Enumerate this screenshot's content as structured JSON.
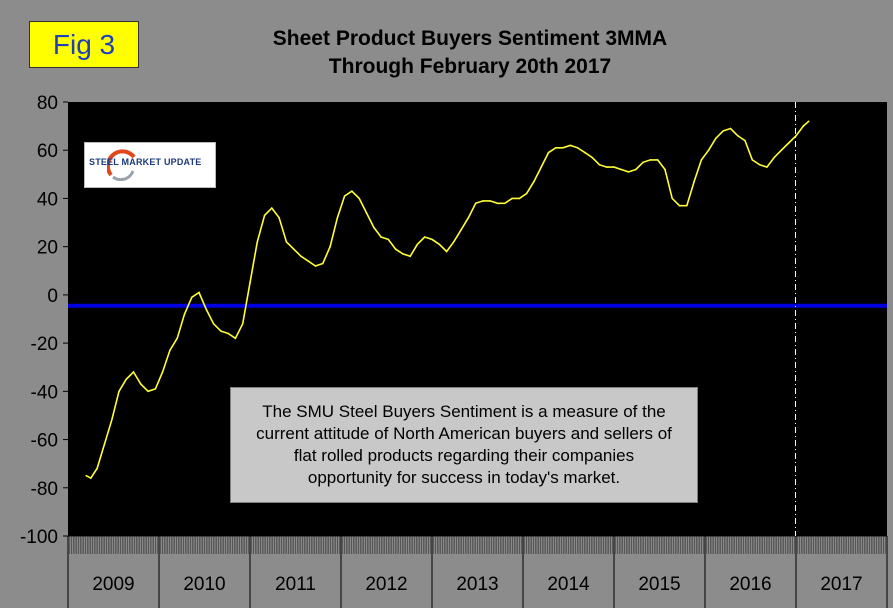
{
  "figure": {
    "label": "Fig 3",
    "title_line1": "Sheet Product Buyers Sentiment 3MMA",
    "title_line2": "Through February 20th 2017"
  },
  "logo": {
    "text": "STEEL MARKET UPDATE"
  },
  "note": {
    "lines": [
      "The SMU Steel Buyers Sentiment is a measure of the",
      "current attitude of North American buyers and sellers of",
      "flat rolled products regarding their companies",
      "opportunity for success in today's market."
    ]
  },
  "colors": {
    "plot_background": "#000000",
    "line": "#ffff33",
    "reference_line": "#0000e0",
    "marker_line": "#ffffff",
    "page_background": "#8c8c8c"
  },
  "chart_data": {
    "type": "line",
    "title": "Sheet Product Buyers Sentiment 3MMA Through February 20th 2017",
    "ylim": [
      -100,
      80
    ],
    "yticks": [
      80,
      60,
      40,
      20,
      0,
      -20,
      -40,
      -60,
      -80,
      -100
    ],
    "xlim": [
      2009.0,
      2018.0
    ],
    "x_tick_labels": [
      "2009",
      "2010",
      "2011",
      "2012",
      "2013",
      "2014",
      "2015",
      "2016",
      "2017"
    ],
    "grid": false,
    "reference_line_y": -4.5,
    "vertical_marker_x": 2017.0,
    "series": [
      {
        "x": [
          2009.2,
          2009.25,
          2009.32,
          2009.4,
          2009.48,
          2009.56,
          2009.64,
          2009.72,
          2009.8,
          2009.88,
          2009.96,
          2010.04,
          2010.12,
          2010.2,
          2010.28,
          2010.36,
          2010.44,
          2010.52,
          2010.6,
          2010.68,
          2010.76,
          2010.84,
          2010.92,
          2011.0,
          2011.08,
          2011.16,
          2011.24,
          2011.32,
          2011.4,
          2011.48,
          2011.56,
          2011.64,
          2011.72,
          2011.8,
          2011.88,
          2011.96,
          2012.04,
          2012.12,
          2012.2,
          2012.28,
          2012.36,
          2012.44,
          2012.52,
          2012.6,
          2012.68,
          2012.76,
          2012.84,
          2012.92,
          2013.0,
          2013.08,
          2013.16,
          2013.24,
          2013.32,
          2013.4,
          2013.48,
          2013.56,
          2013.64,
          2013.72,
          2013.8,
          2013.88,
          2013.96,
          2014.04,
          2014.12,
          2014.2,
          2014.28,
          2014.36,
          2014.44,
          2014.52,
          2014.6,
          2014.68,
          2014.76,
          2014.84,
          2014.92,
          2015.0,
          2015.08,
          2015.16,
          2015.24,
          2015.32,
          2015.4,
          2015.48,
          2015.56,
          2015.64,
          2015.72,
          2015.8,
          2015.88,
          2015.96,
          2016.04,
          2016.12,
          2016.2,
          2016.28,
          2016.36,
          2016.44,
          2016.52,
          2016.6,
          2016.68,
          2016.76,
          2016.84,
          2016.92,
          2017.0,
          2017.08,
          2017.14
        ],
        "y": [
          -75,
          -76,
          -72,
          -62,
          -52,
          -40,
          -35,
          -32,
          -37,
          -40,
          -39,
          -32,
          -23,
          -18,
          -8,
          -1,
          1,
          -6,
          -12,
          -15,
          -16,
          -18,
          -12,
          5,
          22,
          33,
          36,
          32,
          22,
          19,
          16,
          14,
          12,
          13,
          20,
          32,
          41,
          43,
          40,
          34,
          28,
          24,
          23,
          19,
          17,
          16,
          21,
          24,
          23,
          21,
          18,
          22,
          27,
          32,
          38,
          39,
          39,
          38,
          38,
          40,
          40,
          42,
          47,
          53,
          59,
          61,
          61,
          62,
          61,
          59,
          57,
          54,
          53,
          53,
          52,
          51,
          52,
          55,
          56,
          56,
          52,
          40,
          37,
          37,
          47,
          56,
          60,
          65,
          68,
          69,
          66,
          64,
          56,
          54,
          53,
          57,
          60,
          63,
          66,
          70,
          72
        ]
      }
    ]
  }
}
